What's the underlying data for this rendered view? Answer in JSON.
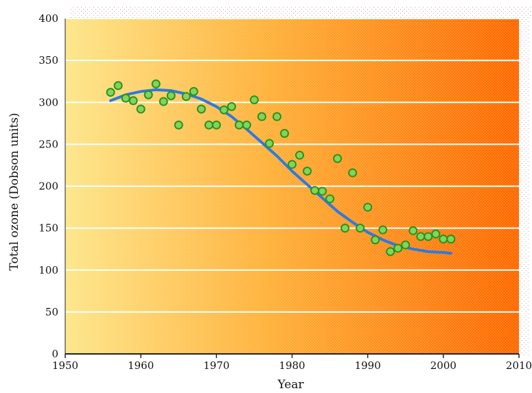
{
  "chart_data": {
    "type": "scatter",
    "title": "",
    "xlabel": "Year",
    "ylabel": "Total ozone (Dobson units)",
    "xlim": [
      1950,
      2010
    ],
    "ylim": [
      0,
      400
    ],
    "xticks": [
      1950,
      1960,
      1970,
      1980,
      1990,
      2000,
      2010
    ],
    "yticks": [
      0,
      50,
      100,
      150,
      200,
      250,
      300,
      350,
      400
    ],
    "grid": "horizontal",
    "legend": "none",
    "colors": {
      "point_fill": "#7fd65a",
      "point_stroke": "#2f8f1e",
      "trend_line": "#2a7be4",
      "background_light": "#fde68a",
      "background_dark": "#ff6a00",
      "grid": "#ffffff"
    },
    "series": [
      {
        "type": "scatter",
        "x": [
          1956,
          1957,
          1958,
          1959,
          1960,
          1961,
          1962,
          1963,
          1964,
          1965,
          1966,
          1967,
          1968,
          1969,
          1970,
          1971,
          1972,
          1973,
          1974,
          1975,
          1976,
          1977,
          1978,
          1979,
          1980,
          1981,
          1982,
          1983,
          1984,
          1985,
          1986,
          1987,
          1988,
          1989,
          1990,
          1991,
          1992,
          1993,
          1994,
          1995,
          1996,
          1997,
          1998,
          1999,
          2000,
          2001
        ],
        "y": [
          312,
          320,
          305,
          302,
          292,
          309,
          322,
          301,
          308,
          273,
          307,
          313,
          292,
          273,
          273,
          291,
          295,
          273,
          273,
          303,
          283,
          251,
          283,
          263,
          226,
          237,
          218,
          195,
          194,
          185,
          233,
          150,
          216,
          150,
          175,
          136,
          148,
          122,
          126,
          130,
          147,
          140,
          140,
          143,
          137,
          137
        ]
      },
      {
        "type": "line",
        "x": [
          1956,
          1958,
          1960,
          1962,
          1964,
          1966,
          1968,
          1970,
          1972,
          1974,
          1976,
          1978,
          1980,
          1982,
          1984,
          1986,
          1988,
          1990,
          1992,
          1994,
          1996,
          1998,
          2000,
          2001
        ],
        "y": [
          302,
          309,
          313,
          315,
          314,
          310,
          304,
          295,
          283,
          268,
          252,
          236,
          218,
          202,
          186,
          170,
          157,
          145,
          136,
          129,
          125,
          122,
          121,
          120
        ]
      }
    ]
  }
}
